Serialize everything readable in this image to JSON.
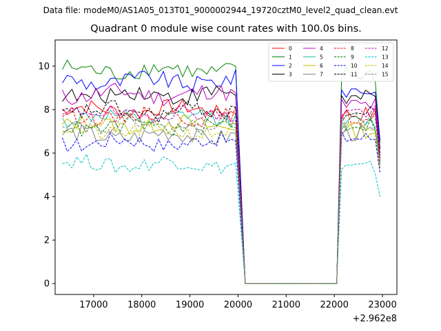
{
  "suptitle": "Data file: modeM0/AS1A05_013T01_9000002944_19720cztM0_level2_quad_clean.evt",
  "chart_data": {
    "type": "line",
    "title": "Quadrant 0 module wise count rates with 100.0s bins.",
    "xlabel": "",
    "ylabel": "",
    "x_offset_label": "+2.962e8",
    "xlim": [
      16200,
      23300
    ],
    "ylim": [
      -0.5,
      11.2
    ],
    "xticks": [
      17000,
      18000,
      19000,
      20000,
      21000,
      22000,
      23000
    ],
    "yticks": [
      0,
      2,
      4,
      6,
      8,
      10
    ],
    "grid": false,
    "legend_position": "top-right",
    "x_segments": {
      "first": {
        "start": 16350,
        "step": 100,
        "count": 37
      },
      "gap_zero": [
        20150,
        22050
      ],
      "second": {
        "start": 22150,
        "step": 100,
        "count": 9
      }
    },
    "series": [
      {
        "name": "0",
        "color": "#ff0000",
        "dash": "solid",
        "level": 8.0,
        "amp": 0.35,
        "second_level": 7.8,
        "end": 5.6
      },
      {
        "name": "1",
        "color": "#008000",
        "dash": "solid",
        "level": 9.8,
        "amp": 0.4,
        "second_level": 9.6,
        "end": 6.5
      },
      {
        "name": "2",
        "color": "#0000ff",
        "dash": "solid",
        "level": 9.3,
        "amp": 0.4,
        "second_level": 8.9,
        "end": 6.6
      },
      {
        "name": "3",
        "color": "#000000",
        "dash": "solid",
        "level": 8.7,
        "amp": 0.4,
        "second_level": 8.5,
        "end": 6.2
      },
      {
        "name": "4",
        "color": "#bf00bf",
        "dash": "solid",
        "level": 8.7,
        "amp": 0.4,
        "second_level": 8.2,
        "end": 6.0
      },
      {
        "name": "5",
        "color": "#1fbf9f",
        "dash": "solid",
        "level": 7.6,
        "amp": 0.35,
        "second_level": 7.4,
        "end": 5.5
      },
      {
        "name": "6",
        "color": "#bfbf00",
        "dash": "solid",
        "level": 7.3,
        "amp": 0.35,
        "second_level": 7.0,
        "end": 5.4
      },
      {
        "name": "7",
        "color": "#808080",
        "dash": "solid",
        "level": 6.8,
        "amp": 0.4,
        "second_level": 6.9,
        "end": 5.3
      },
      {
        "name": "8",
        "color": "#ff0000",
        "dash": "dashed",
        "level": 7.7,
        "amp": 0.35,
        "second_level": 7.6,
        "end": 5.8
      },
      {
        "name": "9",
        "color": "#008000",
        "dash": "dashed",
        "level": 7.2,
        "amp": 0.35,
        "second_level": 7.3,
        "end": 5.6
      },
      {
        "name": "10",
        "color": "#0000ff",
        "dash": "dashed",
        "level": 6.5,
        "amp": 0.35,
        "second_level": 6.7,
        "end": 5.1
      },
      {
        "name": "11",
        "color": "#000000",
        "dash": "dashed",
        "level": 7.9,
        "amp": 0.4,
        "second_level": 7.8,
        "end": 5.9
      },
      {
        "name": "12",
        "color": "#bf00bf",
        "dash": "dashed",
        "level": 7.8,
        "amp": 0.35,
        "second_level": 7.9,
        "end": 5.7
      },
      {
        "name": "13",
        "color": "#00bfbf",
        "dash": "dashed",
        "level": 5.5,
        "amp": 0.35,
        "second_level": 5.3,
        "end": 4.0
      },
      {
        "name": "14",
        "color": "#bfbf00",
        "dash": "dashed",
        "level": 7.0,
        "amp": 0.35,
        "second_level": 7.1,
        "end": 5.3
      },
      {
        "name": "15",
        "color": "#808080",
        "dash": "dashed",
        "level": 7.4,
        "amp": 0.35,
        "second_level": 7.5,
        "end": 5.5
      }
    ]
  }
}
